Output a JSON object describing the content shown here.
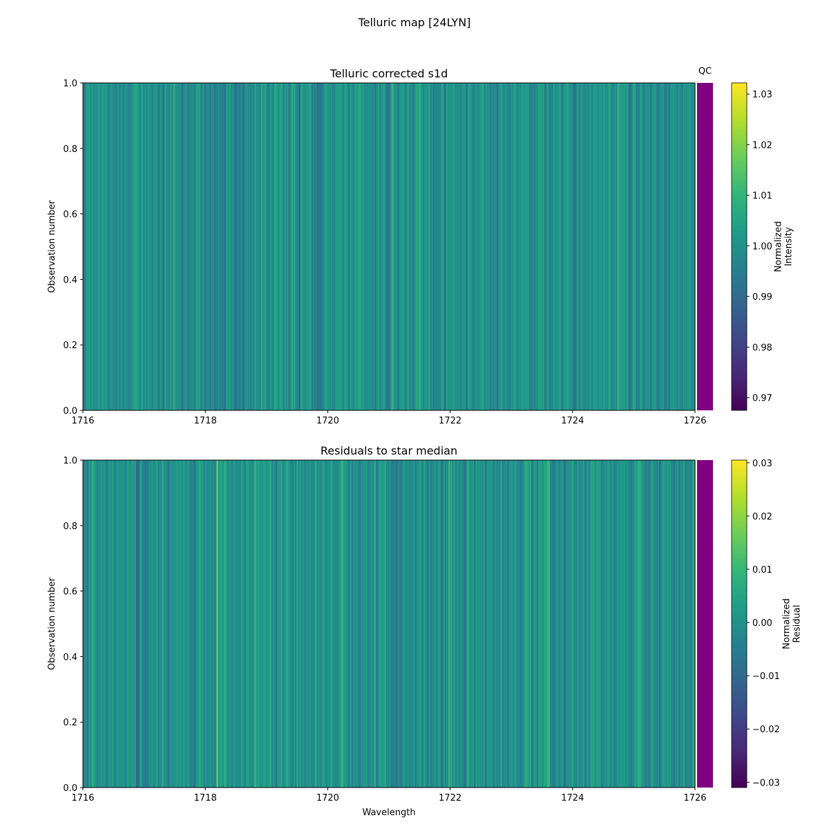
{
  "figure": {
    "suptitle": "Telluric map [24LYN]",
    "qc_label": "QC",
    "qc_color": "#800080"
  },
  "colormap": "viridis",
  "chart_data": [
    {
      "type": "heatmap",
      "title": "Telluric corrected s1d",
      "xlabel": "",
      "ylabel": "Observation number",
      "xlim": [
        1716,
        1726
      ],
      "ylim": [
        0.0,
        1.0
      ],
      "x_ticks": [
        "1716",
        "1718",
        "1720",
        "1722",
        "1724",
        "1726"
      ],
      "y_ticks": [
        "0.0",
        "0.2",
        "0.4",
        "0.6",
        "0.8",
        "1.0"
      ],
      "colorbar": {
        "label": "Normalized\nIntensity",
        "vmin": 0.9675,
        "vmax": 1.0322,
        "ticks": [
          "0.97",
          "0.98",
          "0.99",
          "1.00",
          "1.01",
          "1.02",
          "1.03"
        ],
        "tick_values": [
          0.97,
          0.98,
          0.99,
          1.0,
          1.01,
          1.02,
          1.03
        ]
      },
      "qc_status": "pass",
      "value_center": 1.0,
      "value_spread": 0.008
    },
    {
      "type": "heatmap",
      "title": "Residuals to star median",
      "xlabel": "Wavelength",
      "ylabel": "Observation number",
      "xlim": [
        1716,
        1726
      ],
      "ylim": [
        0.0,
        1.0
      ],
      "x_ticks": [
        "1716",
        "1718",
        "1720",
        "1722",
        "1724",
        "1726"
      ],
      "y_ticks": [
        "0.0",
        "0.2",
        "0.4",
        "0.6",
        "0.8",
        "1.0"
      ],
      "colorbar": {
        "label": "Normalized\nResidual",
        "vmin": -0.031,
        "vmax": 0.0305,
        "ticks": [
          "−0.03",
          "−0.02",
          "−0.01",
          "0.00",
          "0.01",
          "0.02",
          "0.03"
        ],
        "tick_values": [
          -0.03,
          -0.02,
          -0.01,
          0.0,
          0.01,
          0.02,
          0.03
        ]
      },
      "qc_status": "pass",
      "value_center": 0.0,
      "value_spread": 0.008
    }
  ]
}
